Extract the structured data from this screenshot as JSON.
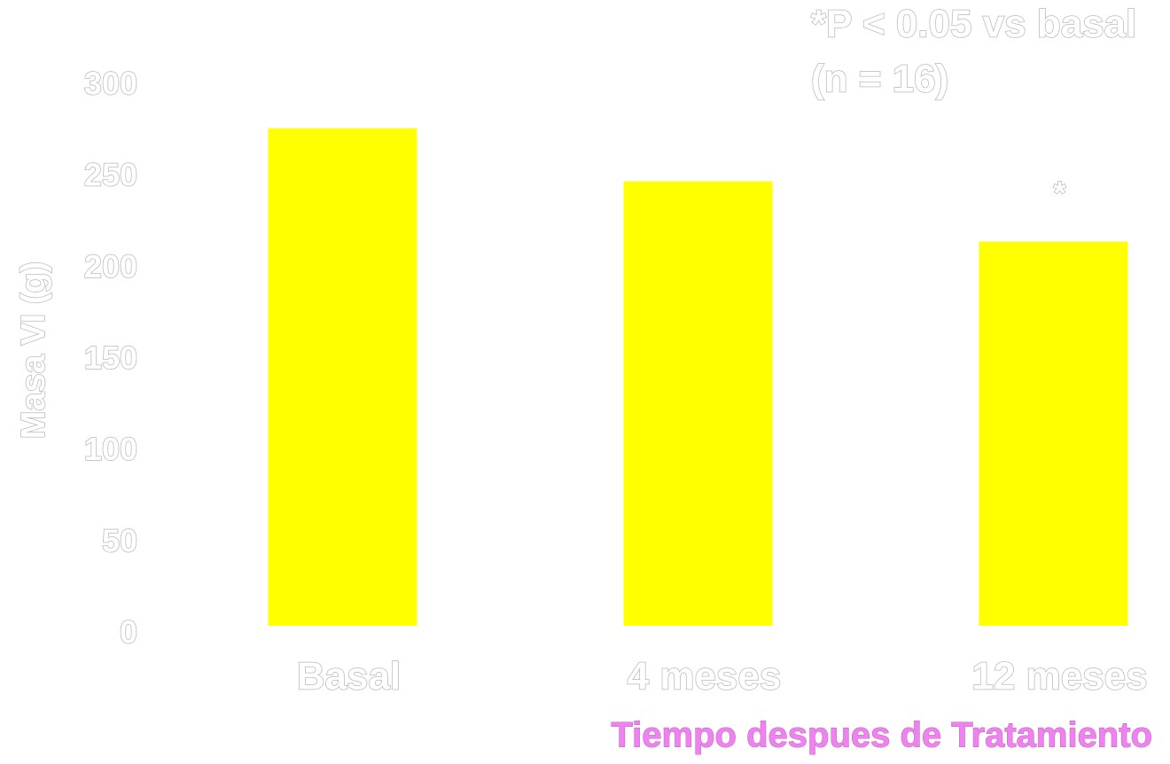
{
  "chart_data": {
    "type": "bar",
    "annotations": [
      "*P < 0.05 vs basal",
      "(n = 16)"
    ],
    "y_label": "Masa VI (g)",
    "x_label": "Tiempo despues de Tratamiento",
    "categories": [
      "Basal",
      "4 meses",
      "12 meses"
    ],
    "values": [
      272,
      243,
      210
    ],
    "significance": [
      null,
      null,
      "*"
    ],
    "color": "#ffff00",
    "ylim": [
      0,
      300
    ],
    "yticks": [
      0,
      50,
      100,
      150,
      200,
      250,
      300
    ],
    "grid": false
  }
}
